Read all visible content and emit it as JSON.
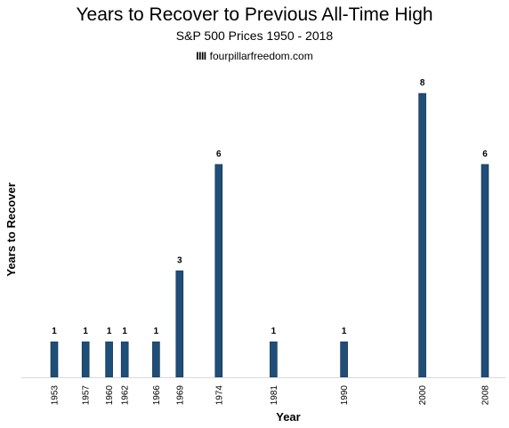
{
  "chart_data": {
    "type": "bar",
    "title": "Years to Recover to Previous All-Time High",
    "subtitle": "S&P 500 Prices 1950 - 2018",
    "brand": "fourpillarfreedom.com",
    "brand_mark": "IIII",
    "xlabel": "Year",
    "ylabel": "Years to Recover",
    "x_scale": "linear",
    "xlim": [
      1950,
      2009
    ],
    "ylim": [
      0,
      8.5
    ],
    "grid": false,
    "legend": "none",
    "color": "#1f4e79",
    "categories": [
      "1953",
      "1957",
      "1960",
      "1962",
      "1966",
      "1969",
      "1974",
      "1981",
      "1990",
      "2000",
      "2008"
    ],
    "values": [
      1,
      1,
      1,
      1,
      1,
      3,
      6,
      1,
      1,
      8,
      6
    ]
  }
}
